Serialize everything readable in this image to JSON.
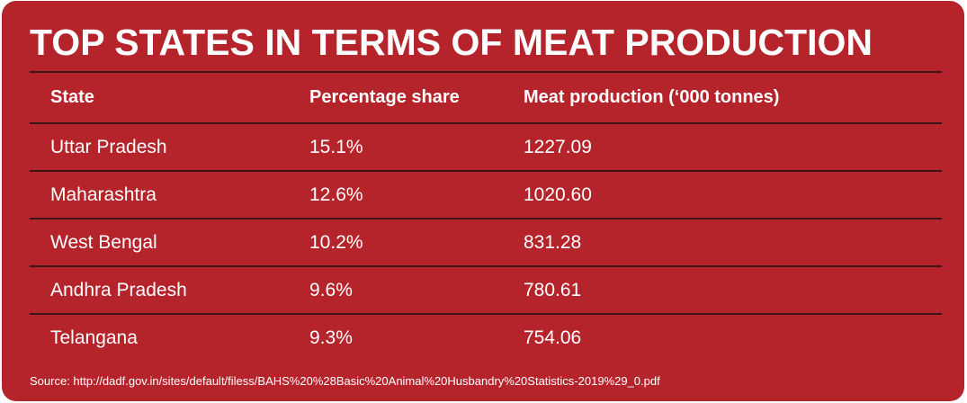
{
  "title": "TOP STATES IN TERMS OF MEAT PRODUCTION",
  "chart_data": {
    "type": "table",
    "title": "TOP STATES IN TERMS OF MEAT PRODUCTION",
    "columns": [
      "State",
      "Percentage share",
      "Meat production (‘000 tonnes)"
    ],
    "rows": [
      [
        "Uttar Pradesh",
        "15.1%",
        "1227.09"
      ],
      [
        "Maharashtra",
        "12.6%",
        "1020.60"
      ],
      [
        "West Bengal",
        "10.2%",
        "831.28"
      ],
      [
        "Andhra Pradesh",
        "9.6%",
        "780.61"
      ],
      [
        "Telangana",
        "9.3%",
        "754.06"
      ]
    ]
  },
  "source": "Source: http://dadf.gov.in/sites/default/filess/BAHS%20%28Basic%20Animal%20Husbandry%20Statistics-2019%29_0.pdf",
  "colors": {
    "background": "#b5232b",
    "text": "#ffffff",
    "rule": "#3a1416"
  }
}
